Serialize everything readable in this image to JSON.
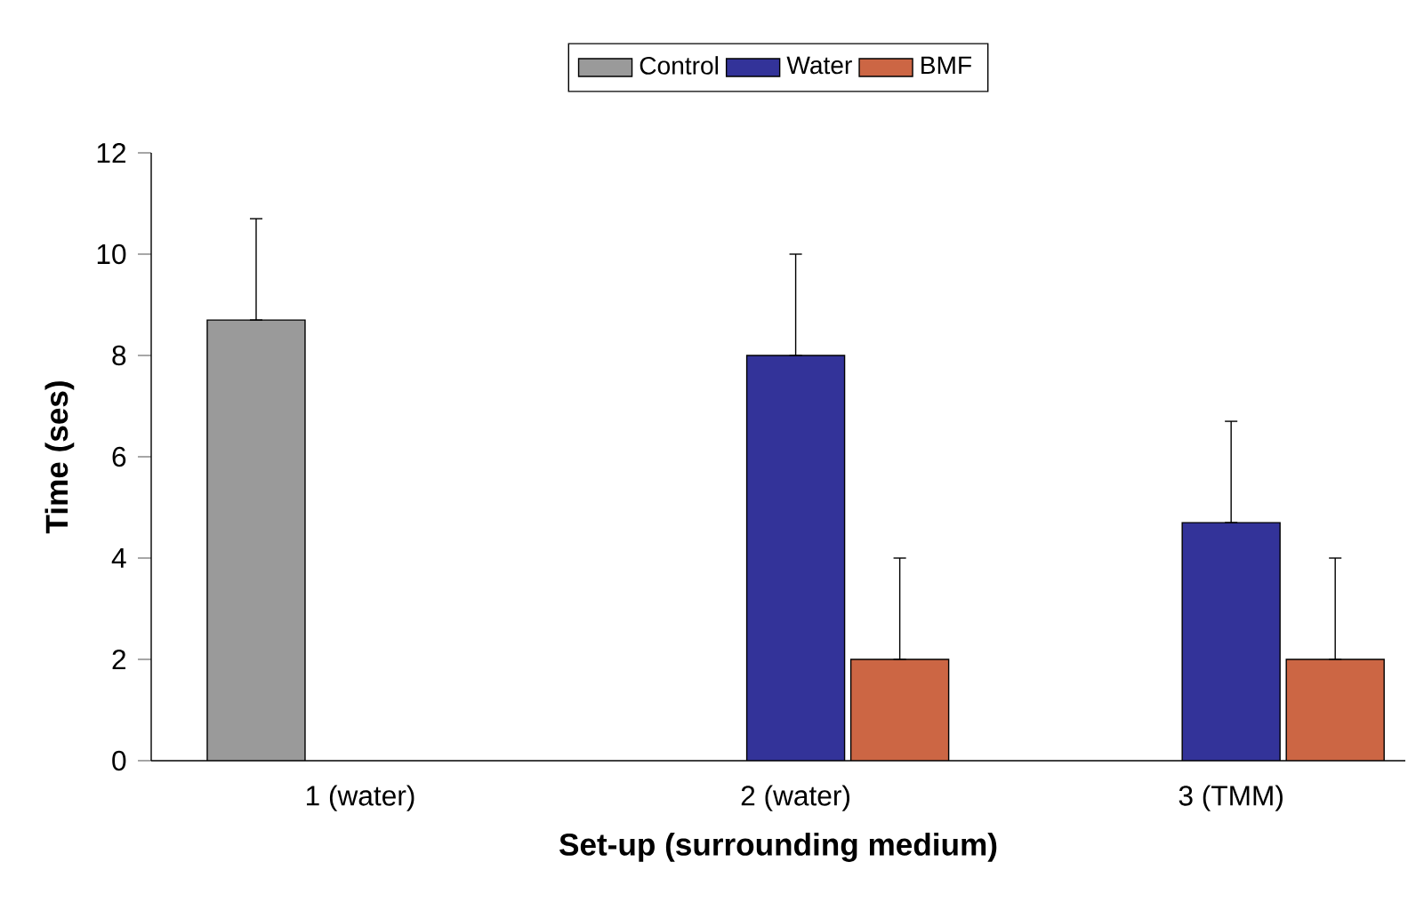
{
  "chart_data": {
    "type": "bar",
    "xlabel": "Set-up (surrounding medium)",
    "ylabel": "Time (ses)",
    "categories": [
      "1 (water)",
      "2 (water)",
      "3 (TMM)"
    ],
    "series": [
      {
        "name": "Control",
        "color": "#9a9a9a",
        "values": [
          8.7,
          null,
          null
        ],
        "errors": [
          [
            8.7,
            10.7
          ],
          null,
          null
        ]
      },
      {
        "name": "Water",
        "color": "#333399",
        "values": [
          null,
          8.0,
          4.7
        ],
        "errors": [
          null,
          [
            8.0,
            10.0
          ],
          [
            4.7,
            6.7
          ]
        ]
      },
      {
        "name": "BMF",
        "color": "#cc6644",
        "values": [
          null,
          2.0,
          2.0
        ],
        "errors": [
          null,
          [
            2.0,
            4.0
          ],
          [
            2.0,
            4.0
          ]
        ]
      }
    ],
    "ylim": [
      0,
      12
    ],
    "yticks": [
      0,
      2,
      4,
      6,
      8,
      10,
      12
    ],
    "grid": false,
    "legend": "top"
  }
}
